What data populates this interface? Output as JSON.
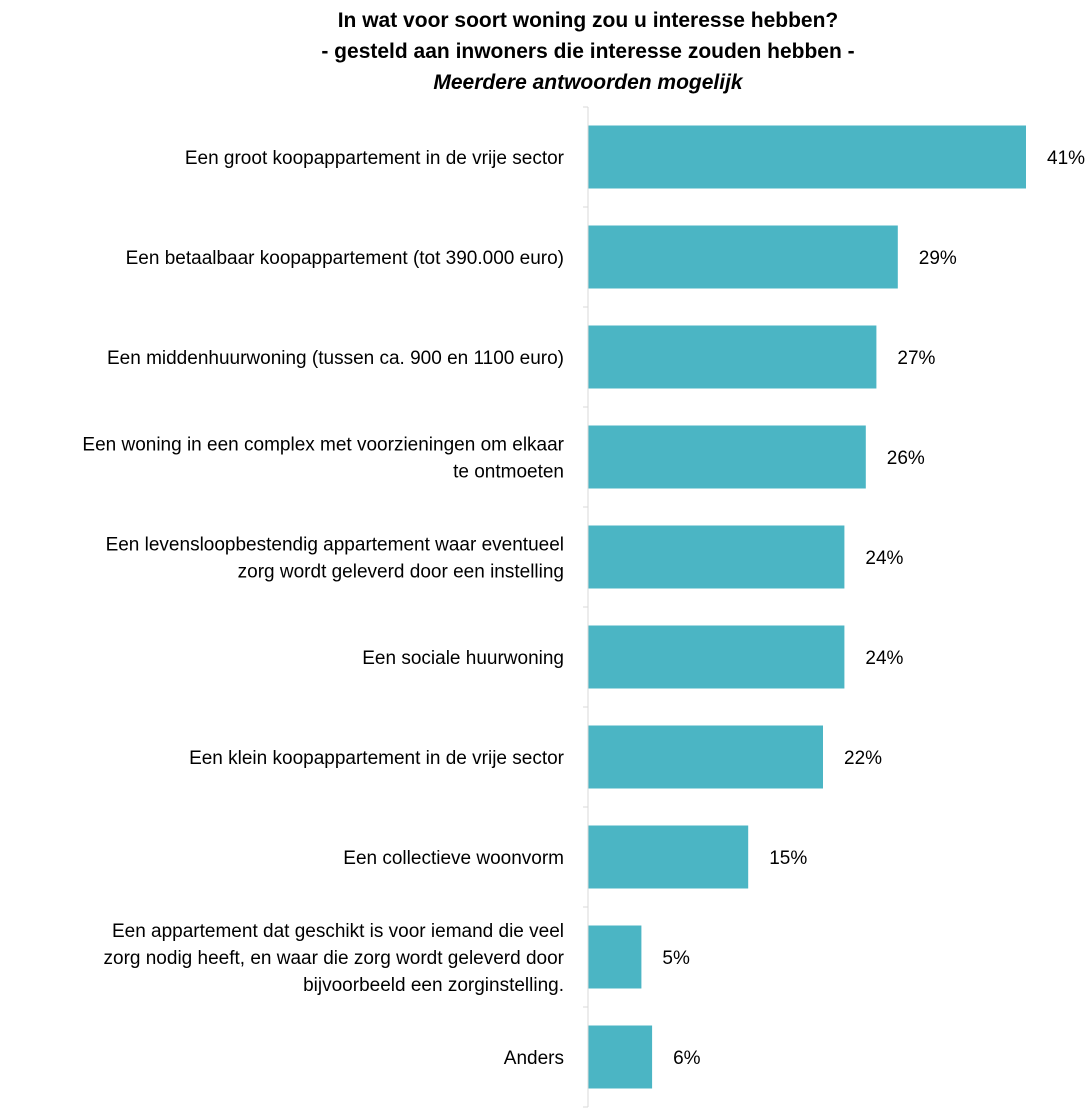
{
  "chart_data": {
    "type": "bar",
    "orientation": "horizontal",
    "title": "In wat voor soort woning zou u interesse hebben?",
    "subtitle": "- gesteld aan inwoners die interesse zouden hebben -",
    "note": "Meerdere antwoorden mogelijk",
    "categories": [
      [
        "Een groot koopappartement in de vrije sector"
      ],
      [
        "Een betaalbaar koopappartement (tot 390.000 euro)"
      ],
      [
        "Een middenhuurwoning (tussen ca. 900 en 1100 euro)"
      ],
      [
        "Een woning in een complex met voorzieningen om elkaar",
        "te ontmoeten"
      ],
      [
        "Een levensloopbestendig appartement waar eventueel",
        "zorg wordt geleverd door een instelling"
      ],
      [
        "Een sociale huurwoning"
      ],
      [
        "Een klein koopappartement in de vrije sector"
      ],
      [
        "Een collectieve woonvorm"
      ],
      [
        "Een appartement dat geschikt is voor iemand die veel",
        "zorg nodig heeft, en waar die zorg wordt geleverd door",
        "bijvoorbeeld een zorginstelling."
      ],
      [
        "Anders"
      ]
    ],
    "values": [
      41,
      29,
      27,
      26,
      24,
      24,
      22,
      15,
      5,
      6
    ],
    "value_labels": [
      "41%",
      "29%",
      "27%",
      "26%",
      "24%",
      "24%",
      "22%",
      "15%",
      "5%",
      "6%"
    ],
    "unit": "%",
    "xlim": [
      0,
      41
    ],
    "bar_color": "#4BB5C4",
    "axis_color": "#D9D9D9",
    "grid": false,
    "legend": "none"
  }
}
